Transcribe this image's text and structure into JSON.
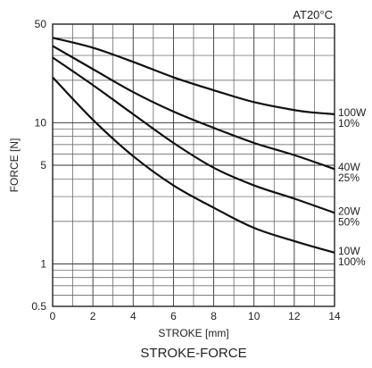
{
  "chart_data": {
    "type": "line",
    "title": "STROKE-FORCE",
    "annotation": "AT20°C",
    "xlabel": "STROKE [mm]",
    "ylabel": "FORCE [N]",
    "xlim": [
      0,
      14
    ],
    "ylim": [
      0.5,
      50
    ],
    "y_scale": "log",
    "grid": true,
    "x_ticks": [
      "0",
      "2",
      "4",
      "6",
      "8",
      "10",
      "12",
      "14"
    ],
    "y_ticks": [
      {
        "value": 50,
        "label": "50"
      },
      {
        "value": 10,
        "label": "10"
      },
      {
        "value": 5,
        "label": "5"
      },
      {
        "value": 1,
        "label": "1"
      },
      {
        "value": 0.5,
        "label": "0.5"
      }
    ],
    "series": [
      {
        "name": "100W 10%",
        "label_lines": [
          "100W",
          "10%"
        ],
        "x": [
          0,
          2,
          4,
          6,
          8,
          10,
          12,
          13,
          14
        ],
        "y": [
          40,
          34,
          27,
          21,
          17,
          14,
          12.3,
          11.8,
          11.5
        ]
      },
      {
        "name": "40W 25%",
        "label_lines": [
          "40W",
          "25%"
        ],
        "x": [
          0,
          2,
          4,
          6,
          8,
          10,
          12,
          14
        ],
        "y": [
          35,
          24,
          16.5,
          12,
          9.2,
          7.2,
          5.9,
          4.7
        ]
      },
      {
        "name": "20W 50%",
        "label_lines": [
          "20W",
          "50%"
        ],
        "x": [
          0,
          2,
          4,
          6,
          8,
          10,
          12,
          14
        ],
        "y": [
          29,
          18.5,
          11.5,
          7.2,
          4.8,
          3.6,
          2.9,
          2.3
        ]
      },
      {
        "name": "10W 100%",
        "label_lines": [
          "10W",
          "100%"
        ],
        "x": [
          0,
          2,
          4,
          6,
          8,
          10,
          12,
          14
        ],
        "y": [
          21,
          10.5,
          5.8,
          3.6,
          2.5,
          1.8,
          1.45,
          1.2
        ]
      }
    ]
  }
}
